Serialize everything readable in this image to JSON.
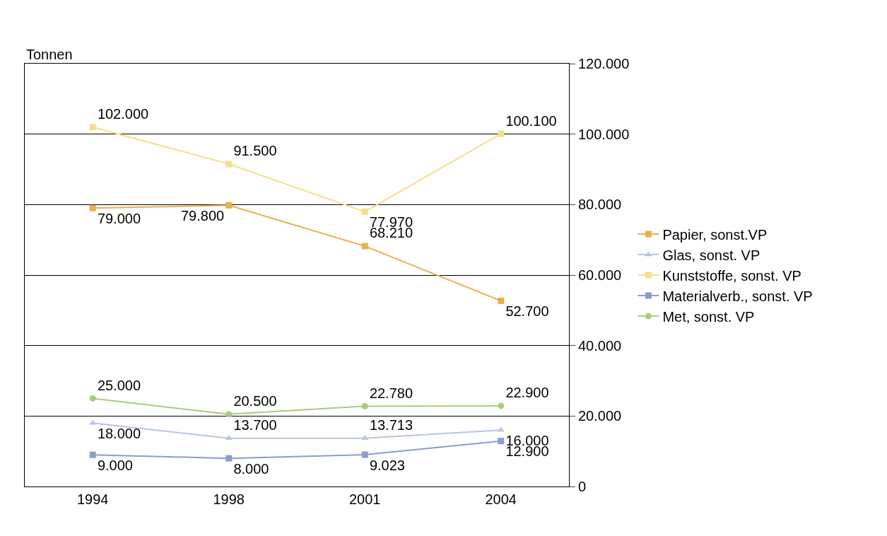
{
  "chart_data": {
    "type": "line",
    "ylabel": "Tonnen",
    "categories": [
      "1994",
      "1998",
      "2001",
      "2004"
    ],
    "series": [
      {
        "name": "Papier, sonst.VP",
        "color": "#e8b04f",
        "marker": "square",
        "values": [
          79000,
          79800,
          68210,
          52700
        ],
        "value_labels": [
          "79.000",
          "79.800",
          "68.210",
          "52.700"
        ]
      },
      {
        "name": "Glas, sonst. VP",
        "color": "#b8c6e4",
        "marker": "triangle",
        "values": [
          18000,
          13700,
          13713,
          16000
        ],
        "value_labels": [
          "18.000",
          "13.700",
          "13.713",
          "16.000"
        ]
      },
      {
        "name": "Kunststoffe, sonst. VP",
        "color": "#f5e08a",
        "marker": "square",
        "values": [
          102000,
          91500,
          77970,
          100100
        ],
        "value_labels": [
          "102.000",
          "91.500",
          "77.970",
          "100.100"
        ]
      },
      {
        "name": "Materialverb., sonst. VP",
        "color": "#8c9ccf",
        "marker": "square",
        "values": [
          9000,
          8000,
          9023,
          12900
        ],
        "value_labels": [
          "9.000",
          "8.000",
          "9.023",
          "12.900"
        ]
      },
      {
        "name": "Met, sonst. VP",
        "color": "#a9cc7c",
        "marker": "circle",
        "values": [
          25000,
          20500,
          22780,
          22900
        ],
        "value_labels": [
          "25.000",
          "20.500",
          "22.780",
          "22.900"
        ]
      }
    ],
    "ylim": [
      0,
      120000
    ],
    "yticks": [
      {
        "value": 0,
        "label": "0"
      },
      {
        "value": 20000,
        "label": "20.000"
      },
      {
        "value": 40000,
        "label": "40.000"
      },
      {
        "value": 60000,
        "label": "60.000"
      },
      {
        "value": 80000,
        "label": "80.000"
      },
      {
        "value": 100000,
        "label": "100.000"
      },
      {
        "value": 120000,
        "label": "120.000"
      }
    ],
    "grid": "y",
    "legend": "right",
    "line_style": "solid"
  }
}
